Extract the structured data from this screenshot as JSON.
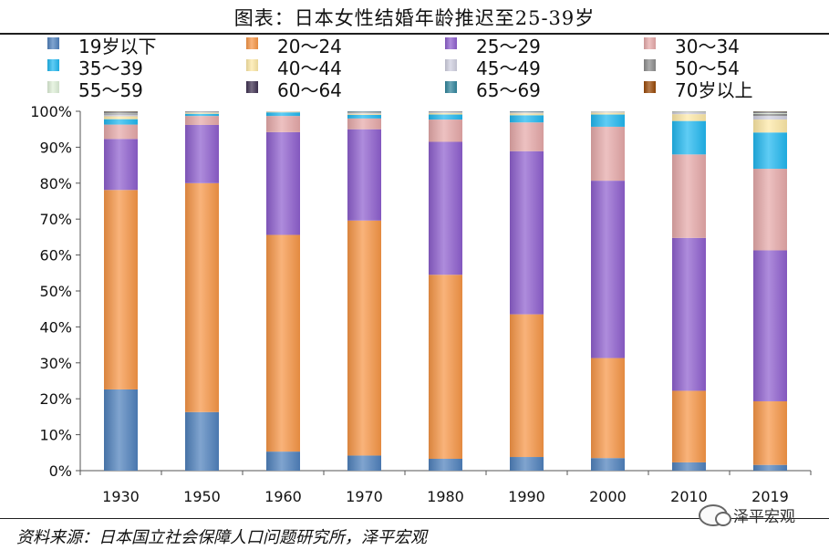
{
  "figure": {
    "title": "图表：日本女性结婚年龄推迟至25-39岁",
    "source": "资料来源：日本国立社会保障人口问题研究所，泽平宏观",
    "watermark": "泽平宏观"
  },
  "chart_data": {
    "type": "bar",
    "stacked": true,
    "title": "图表：日本女性结婚年龄推迟至25-39岁",
    "xlabel": "",
    "ylabel": "",
    "ylim": [
      0,
      100
    ],
    "y_ticks": [
      "0%",
      "10%",
      "20%",
      "30%",
      "40%",
      "50%",
      "60%",
      "70%",
      "80%",
      "90%",
      "100%"
    ],
    "categories": [
      "1930",
      "1950",
      "1960",
      "1970",
      "1980",
      "1990",
      "2000",
      "2010",
      "2019"
    ],
    "legend_position": "top",
    "series": [
      {
        "name": "19岁以下",
        "color": "#4f81bd",
        "values": [
          22.6,
          16.3,
          5.3,
          4.2,
          3.3,
          3.8,
          3.5,
          2.3,
          1.6
        ]
      },
      {
        "name": "20～24",
        "color": "#f79646",
        "values": [
          55.5,
          63.7,
          60.3,
          65.4,
          51.2,
          39.7,
          27.8,
          19.9,
          17.7
        ]
      },
      {
        "name": "25～29",
        "color": "#8e5fce",
        "values": [
          14.2,
          16.2,
          28.6,
          25.4,
          37.0,
          45.4,
          49.3,
          42.5,
          42.0
        ]
      },
      {
        "name": "30～34",
        "color": "#e6a9a9",
        "values": [
          4.0,
          2.5,
          4.5,
          3.0,
          6.2,
          8.0,
          15.0,
          23.2,
          22.7
        ]
      },
      {
        "name": "35～39",
        "color": "#21b8f0",
        "values": [
          1.5,
          0.6,
          1.0,
          1.0,
          1.4,
          2.0,
          3.4,
          9.3,
          10.1
        ]
      },
      {
        "name": "40～44",
        "color": "#fde9a6",
        "values": [
          0.8,
          0.3,
          0.2,
          0.3,
          0.4,
          0.5,
          0.5,
          1.9,
          3.6
        ]
      },
      {
        "name": "45～49",
        "color": "#d0d0e0",
        "values": [
          0.5,
          0.1,
          0.1,
          0.2,
          0.2,
          0.2,
          0.2,
          0.5,
          1.0
        ]
      },
      {
        "name": "50～54",
        "color": "#8c8c8c",
        "values": [
          0.3,
          0.1,
          0.0,
          0.2,
          0.1,
          0.1,
          0.1,
          0.2,
          0.6
        ]
      },
      {
        "name": "55～59",
        "color": "#dff0d8",
        "values": [
          0.2,
          0.1,
          0.0,
          0.1,
          0.1,
          0.1,
          0.1,
          0.1,
          0.3
        ]
      },
      {
        "name": "60～64",
        "color": "#3f3151",
        "values": [
          0.2,
          0.1,
          0.0,
          0.1,
          0.1,
          0.1,
          0.0,
          0.0,
          0.2
        ]
      },
      {
        "name": "65～69",
        "color": "#31859c",
        "values": [
          0.1,
          0.0,
          0.0,
          0.1,
          0.0,
          0.1,
          0.0,
          0.0,
          0.1
        ]
      },
      {
        "name": "70岁以上",
        "color": "#984807",
        "values": [
          0.1,
          0.0,
          0.0,
          0.0,
          0.0,
          0.0,
          0.0,
          0.0,
          0.1
        ]
      }
    ]
  }
}
